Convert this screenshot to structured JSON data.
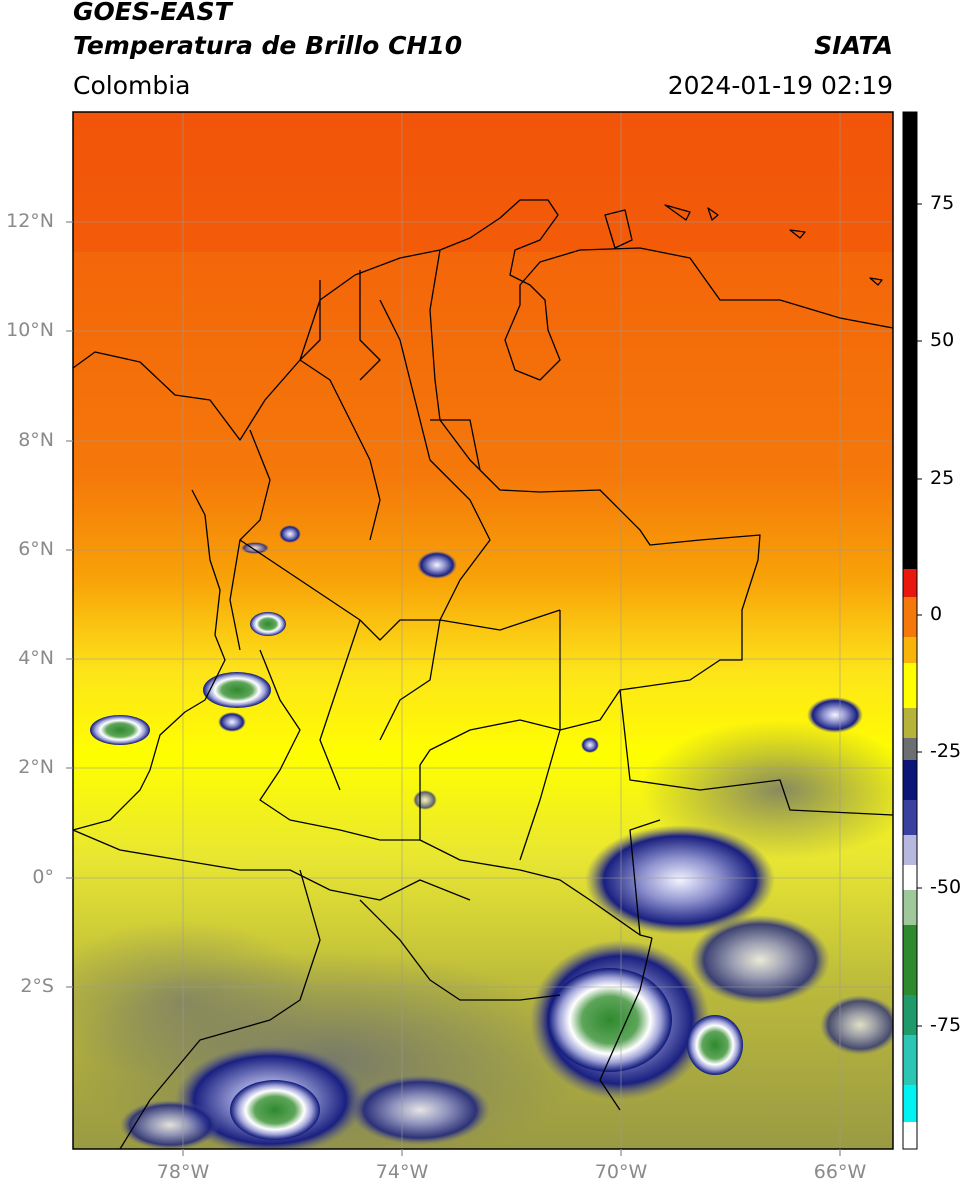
{
  "header": {
    "satellite": "GOES-EAST",
    "product": "Temperatura de Brillo CH10",
    "region": "Colombia",
    "source": "SIATA",
    "datetime": "2024-01-19 02:19"
  },
  "map": {
    "lat_ticks": [
      "12°N",
      "10°N",
      "8°N",
      "6°N",
      "4°N",
      "2°N",
      "0°",
      "2°S"
    ],
    "lon_ticks": [
      "78°W",
      "74°W",
      "70°W",
      "66°W"
    ]
  },
  "colorbar": {
    "ticks": [
      "75",
      "50",
      "25",
      "0",
      "-25",
      "-50",
      "-75"
    ],
    "colors": {
      "black": "#000000",
      "red": "#e8180c",
      "orange": "#f5780a",
      "yellow": "#ffff00",
      "olive": "#b5b33a",
      "gray": "#6b6f72",
      "navy": "#0c1678",
      "lavender": "#b6b8e0",
      "white": "#ffffff",
      "green": "#2e8a2e",
      "teal": "#2cc6b4",
      "cyan": "#00f2f2"
    }
  }
}
